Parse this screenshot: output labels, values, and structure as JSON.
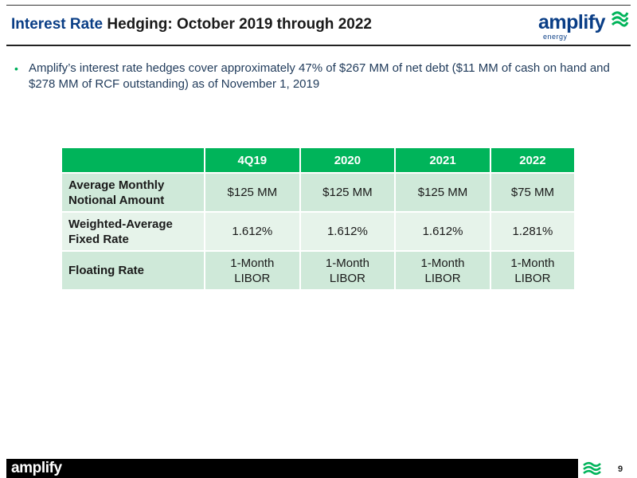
{
  "header": {
    "title_lead": "Interest Rate",
    "title_rest": "Hedging: October 2019 through 2022"
  },
  "logo": {
    "word_main": "ampl",
    "word_accent": "ify",
    "sub": "energy"
  },
  "bullet": {
    "text": "Amplify’s interest rate hedges cover approximately 47% of $267 MM of net debt ($11 MM of cash on hand and $278 MM of RCF outstanding) as of November 1, 2019"
  },
  "table": {
    "columns": [
      "4Q19",
      "2020",
      "2021",
      "2022"
    ],
    "rows": [
      {
        "label_1": "Average Monthly",
        "label_2": "Notional Amount",
        "cells": [
          [
            "$125 MM"
          ],
          [
            "$125 MM"
          ],
          [
            "$125 MM"
          ],
          [
            "$75 MM"
          ]
        ]
      },
      {
        "label_1": "Weighted-Average",
        "label_2": "Fixed Rate",
        "cells": [
          [
            "1.612%"
          ],
          [
            "1.612%"
          ],
          [
            "1.612%"
          ],
          [
            "1.281%"
          ]
        ]
      },
      {
        "label_1": "Floating Rate",
        "label_2": "",
        "cells": [
          [
            "1-Month",
            "LIBOR"
          ],
          [
            "1-Month",
            "LIBOR"
          ],
          [
            "1-Month",
            "LIBOR"
          ],
          [
            "1-Month",
            "LIBOR"
          ]
        ]
      }
    ]
  },
  "footer": {
    "logo_main": "ampl",
    "logo_accent": "ify",
    "page_number": "9"
  },
  "colors": {
    "brand_blue": "#0a3e86",
    "brand_green": "#00b45a",
    "row_green": "#cfe9d9"
  }
}
